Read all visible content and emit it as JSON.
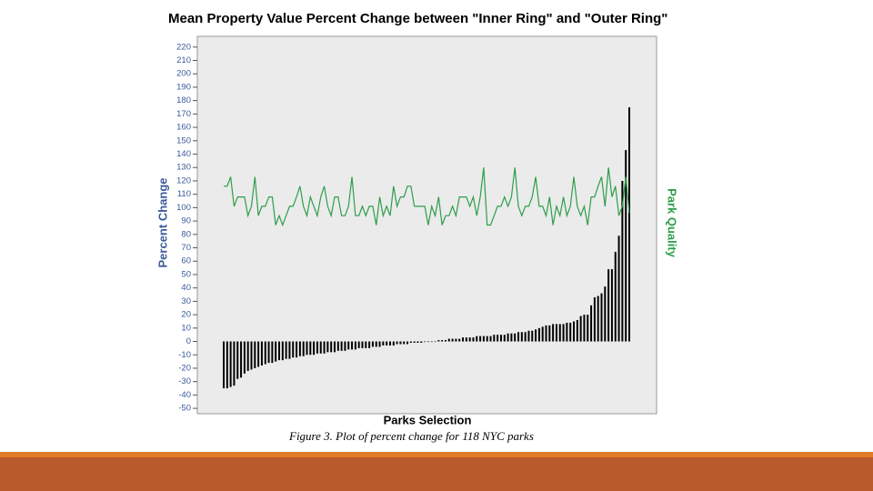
{
  "chart_data": {
    "type": "bar",
    "title": "Mean Property Value Percent Change between \"Inner Ring\" and \"Outer Ring\"",
    "y_label": "Percent Change",
    "y2_label": "Park Quality",
    "x_label": "Parks Selection",
    "caption": "Figure 3. Plot of percent change for 118 NYC parks",
    "ylim": [
      -54,
      228
    ],
    "yticks": [
      -50,
      -40,
      -30,
      -20,
      -10,
      0,
      10,
      20,
      30,
      40,
      50,
      60,
      70,
      80,
      90,
      100,
      110,
      120,
      130,
      140,
      150,
      160,
      170,
      180,
      190,
      200,
      210,
      220
    ],
    "y2lim": [
      -54,
      228
    ],
    "series": [
      {
        "type": "bar",
        "color": "#000000",
        "values": [
          -35,
          -35,
          -34,
          -33,
          -28,
          -27,
          -24,
          -22,
          -21,
          -20,
          -19,
          -18,
          -17,
          -16,
          -16,
          -15,
          -14,
          -14,
          -13,
          -13,
          -12,
          -12,
          -11,
          -11,
          -10,
          -10,
          -10,
          -9,
          -9,
          -9,
          -8,
          -8,
          -8,
          -7,
          -7,
          -7,
          -6,
          -6,
          -6,
          -5,
          -5,
          -5,
          -5,
          -4,
          -4,
          -4,
          -3,
          -3,
          -3,
          -3,
          -2,
          -2,
          -2,
          -2,
          -1,
          -1,
          -1,
          -1,
          0,
          0,
          0,
          0,
          1,
          1,
          1,
          2,
          2,
          2,
          2,
          3,
          3,
          3,
          3,
          4,
          4,
          4,
          4,
          4,
          5,
          5,
          5,
          5,
          6,
          6,
          6,
          7,
          7,
          7,
          8,
          8,
          9,
          10,
          11,
          12,
          12,
          13,
          13,
          13,
          13,
          14,
          14,
          15,
          16,
          19,
          20,
          20,
          27,
          33,
          34,
          36,
          41,
          54,
          54,
          67,
          79,
          120,
          143,
          175
        ]
      },
      {
        "type": "line",
        "axis": "y2",
        "color": "#2e9e4a",
        "values": [
          116,
          116,
          123,
          101,
          108,
          108,
          108,
          94,
          101,
          123,
          94,
          101,
          101,
          108,
          108,
          87,
          94,
          87,
          94,
          101,
          101,
          108,
          116,
          101,
          94,
          108,
          101,
          94,
          108,
          116,
          101,
          94,
          108,
          108,
          94,
          94,
          101,
          123,
          94,
          94,
          101,
          94,
          101,
          101,
          87,
          108,
          94,
          101,
          94,
          116,
          101,
          108,
          108,
          116,
          116,
          101,
          101,
          101,
          101,
          87,
          101,
          94,
          108,
          87,
          94,
          94,
          101,
          94,
          108,
          108,
          108,
          101,
          108,
          94,
          108,
          130,
          87,
          87,
          94,
          101,
          101,
          108,
          101,
          108,
          130,
          101,
          94,
          101,
          101,
          108,
          123,
          101,
          101,
          94,
          108,
          87,
          101,
          94,
          108,
          94,
          101,
          123,
          101,
          94,
          101,
          87,
          108,
          108,
          116,
          123,
          101,
          130,
          108,
          116,
          94,
          101,
          123,
          96
        ]
      }
    ]
  }
}
